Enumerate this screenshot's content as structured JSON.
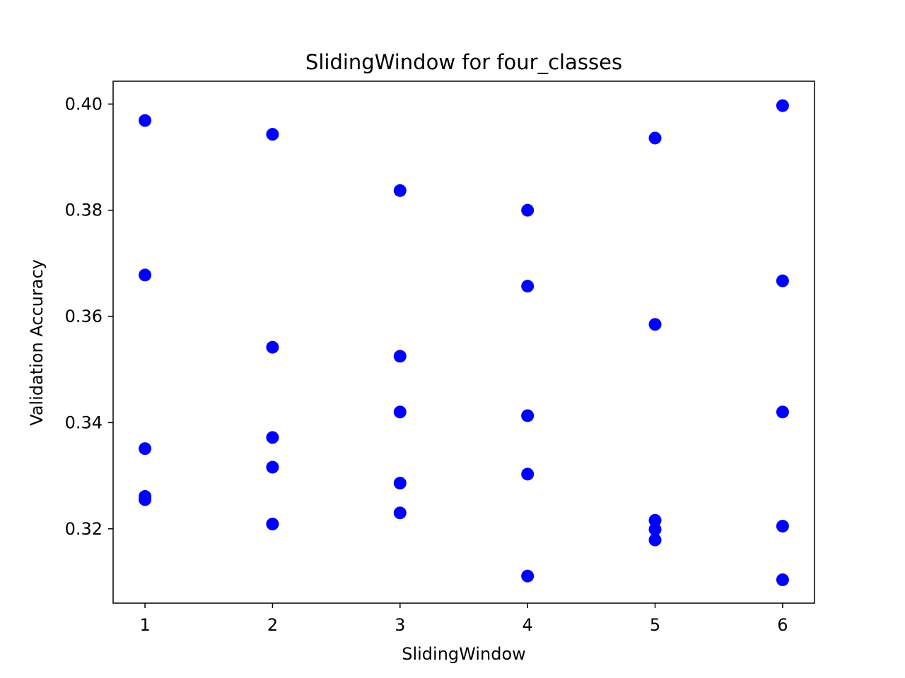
{
  "chart_data": {
    "type": "scatter",
    "title": "SlidingWindow for four_classes",
    "xlabel": "SlidingWindow",
    "ylabel": "Validation Accuracy",
    "xlim": [
      0.75,
      6.25
    ],
    "ylim": [
      0.306,
      0.4043
    ],
    "xticks": [
      1,
      2,
      3,
      4,
      5,
      6
    ],
    "xtick_labels": [
      "1",
      "2",
      "3",
      "4",
      "5",
      "6"
    ],
    "yticks": [
      0.32,
      0.34,
      0.36,
      0.38,
      0.4
    ],
    "ytick_labels": [
      "0.32",
      "0.34",
      "0.36",
      "0.38",
      "0.40"
    ],
    "grid": false,
    "marker_color": "#0000ff",
    "points": [
      {
        "x": 1,
        "y": 0.3969
      },
      {
        "x": 1,
        "y": 0.3678
      },
      {
        "x": 1,
        "y": 0.3351
      },
      {
        "x": 1,
        "y": 0.3261
      },
      {
        "x": 1,
        "y": 0.3255
      },
      {
        "x": 2,
        "y": 0.3943
      },
      {
        "x": 2,
        "y": 0.3542
      },
      {
        "x": 2,
        "y": 0.3372
      },
      {
        "x": 2,
        "y": 0.3316
      },
      {
        "x": 2,
        "y": 0.3209
      },
      {
        "x": 3,
        "y": 0.3837
      },
      {
        "x": 3,
        "y": 0.3525
      },
      {
        "x": 3,
        "y": 0.342
      },
      {
        "x": 3,
        "y": 0.3286
      },
      {
        "x": 3,
        "y": 0.323
      },
      {
        "x": 4,
        "y": 0.38
      },
      {
        "x": 4,
        "y": 0.3657
      },
      {
        "x": 4,
        "y": 0.3413
      },
      {
        "x": 4,
        "y": 0.3303
      },
      {
        "x": 4,
        "y": 0.3111
      },
      {
        "x": 5,
        "y": 0.3936
      },
      {
        "x": 5,
        "y": 0.3585
      },
      {
        "x": 5,
        "y": 0.3216
      },
      {
        "x": 5,
        "y": 0.3199
      },
      {
        "x": 5,
        "y": 0.3179
      },
      {
        "x": 6,
        "y": 0.3997
      },
      {
        "x": 6,
        "y": 0.3667
      },
      {
        "x": 6,
        "y": 0.342
      },
      {
        "x": 6,
        "y": 0.3205
      },
      {
        "x": 6,
        "y": 0.3104
      }
    ]
  }
}
